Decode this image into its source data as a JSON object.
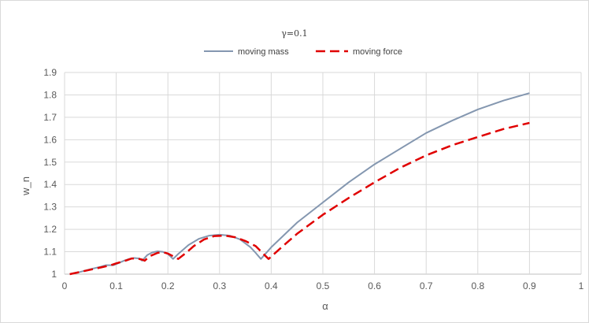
{
  "chart_data": {
    "type": "line",
    "title": "γ=0.1",
    "xlabel": "α",
    "ylabel": "w_n",
    "xlim": [
      0,
      1
    ],
    "ylim": [
      1,
      1.9
    ],
    "x_ticks": [
      "0",
      "0.1",
      "0.2",
      "0.3",
      "0.4",
      "0.5",
      "0.6",
      "0.7",
      "0.8",
      "0.9",
      "1"
    ],
    "y_ticks": [
      "1",
      "1.1",
      "1.2",
      "1.3",
      "1.4",
      "1.5",
      "1.6",
      "1.7",
      "1.8",
      "1.9"
    ],
    "grid": true,
    "legend_position": "top-center",
    "series": [
      {
        "name": "moving mass",
        "color": "#8497b0",
        "dash": "solid",
        "points": [
          [
            0.01,
            1.0
          ],
          [
            0.03,
            1.01
          ],
          [
            0.05,
            1.022
          ],
          [
            0.07,
            1.033
          ],
          [
            0.08,
            1.04
          ],
          [
            0.095,
            1.04
          ],
          [
            0.105,
            1.05
          ],
          [
            0.115,
            1.06
          ],
          [
            0.125,
            1.068
          ],
          [
            0.135,
            1.072
          ],
          [
            0.145,
            1.07
          ],
          [
            0.15,
            1.06
          ],
          [
            0.16,
            1.085
          ],
          [
            0.17,
            1.097
          ],
          [
            0.18,
            1.102
          ],
          [
            0.19,
            1.1
          ],
          [
            0.2,
            1.09
          ],
          [
            0.21,
            1.068
          ],
          [
            0.22,
            1.09
          ],
          [
            0.24,
            1.13
          ],
          [
            0.26,
            1.158
          ],
          [
            0.28,
            1.172
          ],
          [
            0.3,
            1.176
          ],
          [
            0.32,
            1.172
          ],
          [
            0.34,
            1.155
          ],
          [
            0.36,
            1.12
          ],
          [
            0.37,
            1.095
          ],
          [
            0.38,
            1.068
          ],
          [
            0.4,
            1.12
          ],
          [
            0.45,
            1.23
          ],
          [
            0.5,
            1.32
          ],
          [
            0.55,
            1.41
          ],
          [
            0.6,
            1.49
          ],
          [
            0.65,
            1.56
          ],
          [
            0.7,
            1.63
          ],
          [
            0.75,
            1.685
          ],
          [
            0.8,
            1.735
          ],
          [
            0.85,
            1.775
          ],
          [
            0.9,
            1.808
          ]
        ]
      },
      {
        "name": "moving force",
        "color": "#e00000",
        "dash": "dashed",
        "points": [
          [
            0.01,
            1.0
          ],
          [
            0.03,
            1.01
          ],
          [
            0.05,
            1.02
          ],
          [
            0.07,
            1.03
          ],
          [
            0.09,
            1.04
          ],
          [
            0.1,
            1.048
          ],
          [
            0.11,
            1.055
          ],
          [
            0.12,
            1.062
          ],
          [
            0.13,
            1.07
          ],
          [
            0.14,
            1.07
          ],
          [
            0.15,
            1.065
          ],
          [
            0.155,
            1.06
          ],
          [
            0.165,
            1.08
          ],
          [
            0.18,
            1.095
          ],
          [
            0.19,
            1.098
          ],
          [
            0.2,
            1.092
          ],
          [
            0.21,
            1.08
          ],
          [
            0.22,
            1.068
          ],
          [
            0.235,
            1.095
          ],
          [
            0.25,
            1.125
          ],
          [
            0.27,
            1.155
          ],
          [
            0.29,
            1.17
          ],
          [
            0.31,
            1.172
          ],
          [
            0.33,
            1.165
          ],
          [
            0.35,
            1.148
          ],
          [
            0.37,
            1.125
          ],
          [
            0.385,
            1.09
          ],
          [
            0.395,
            1.068
          ],
          [
            0.42,
            1.12
          ],
          [
            0.45,
            1.18
          ],
          [
            0.5,
            1.265
          ],
          [
            0.55,
            1.34
          ],
          [
            0.6,
            1.41
          ],
          [
            0.65,
            1.475
          ],
          [
            0.7,
            1.53
          ],
          [
            0.75,
            1.575
          ],
          [
            0.8,
            1.612
          ],
          [
            0.85,
            1.648
          ],
          [
            0.9,
            1.675
          ]
        ]
      }
    ]
  }
}
